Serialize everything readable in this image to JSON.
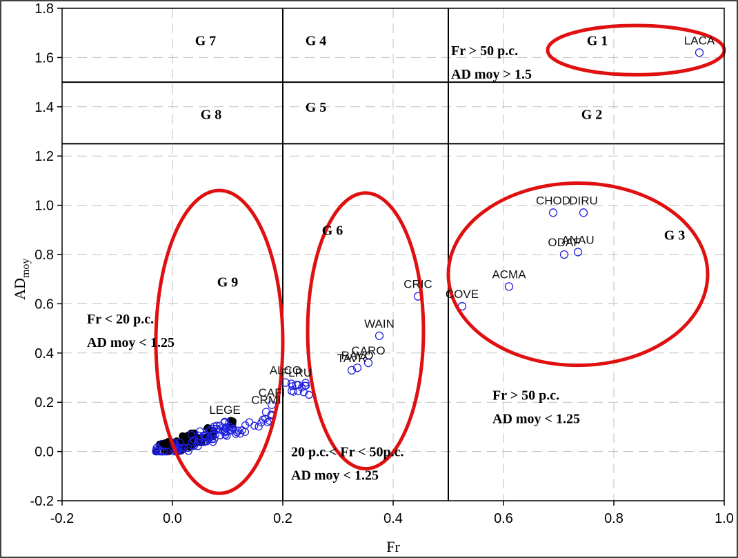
{
  "chart_data": {
    "type": "scatter",
    "xlabel": "Fr",
    "ylabel": "AD",
    "ylabel_sub": "moy",
    "xlim": [
      -0.2,
      1.0
    ],
    "ylim": [
      -0.2,
      1.8
    ],
    "xticks": [
      "-0.2",
      "0.0",
      "0.2",
      "0.4",
      "0.6",
      "0.8",
      "1.0"
    ],
    "yticks": [
      "-0.2",
      "0.0",
      "0.2",
      "0.4",
      "0.6",
      "0.8",
      "1.0",
      "1.2",
      "1.4",
      "1.6",
      "1.8"
    ],
    "grid": true,
    "labeled_points": [
      {
        "label": "LACA",
        "x": 0.955,
        "y": 1.62
      },
      {
        "label": "CHOD",
        "x": 0.69,
        "y": 0.97
      },
      {
        "label": "DIRU",
        "x": 0.745,
        "y": 0.97
      },
      {
        "label": "ODAF",
        "x": 0.71,
        "y": 0.8
      },
      {
        "label": "ANAU",
        "x": 0.735,
        "y": 0.81
      },
      {
        "label": "ACMA",
        "x": 0.61,
        "y": 0.67
      },
      {
        "label": "COVE",
        "x": 0.525,
        "y": 0.59
      },
      {
        "label": "CRIC",
        "x": 0.445,
        "y": 0.63
      },
      {
        "label": "WAIN",
        "x": 0.375,
        "y": 0.47
      },
      {
        "label": "CARO",
        "x": 0.355,
        "y": 0.36
      },
      {
        "label": "TAVR",
        "x": 0.325,
        "y": 0.33
      },
      {
        "label": "RAVO",
        "x": 0.335,
        "y": 0.34
      },
      {
        "label": "ALCO",
        "x": 0.205,
        "y": 0.28
      },
      {
        "label": "FLRU",
        "x": 0.225,
        "y": 0.27
      },
      {
        "label": "CAFI",
        "x": 0.18,
        "y": 0.19
      },
      {
        "label": "CRMI",
        "x": 0.17,
        "y": 0.16
      },
      {
        "label": "LEGE",
        "x": 0.095,
        "y": 0.12
      }
    ],
    "group_labels": [
      {
        "label": "G 1",
        "x": 0.77,
        "y": 1.65
      },
      {
        "label": "G 2",
        "x": 0.76,
        "y": 1.35
      },
      {
        "label": "G 3",
        "x": 0.91,
        "y": 0.86
      },
      {
        "label": "G 4",
        "x": 0.26,
        "y": 1.65
      },
      {
        "label": "G 5",
        "x": 0.26,
        "y": 1.38
      },
      {
        "label": "G 6",
        "x": 0.29,
        "y": 0.88
      },
      {
        "label": "G 7",
        "x": 0.06,
        "y": 1.65
      },
      {
        "label": "G 8",
        "x": 0.07,
        "y": 1.35
      },
      {
        "label": "G 9",
        "x": 0.1,
        "y": 0.67
      }
    ],
    "annotations": [
      {
        "line1": "Fr > 50 p.c.",
        "line2": "AD moy > 1.5",
        "x": 0.505,
        "y": 1.61
      },
      {
        "line1": "Fr < 20 p.c.",
        "line2": "AD moy <  1.25",
        "x": -0.155,
        "y": 0.52
      },
      {
        "line1": "20 p.c.< Fr < 50p.c.",
        "line2": "AD moy < 1.25",
        "x": 0.215,
        "y": -0.02
      },
      {
        "line1": "Fr > 50 p.c.",
        "line2": "AD moy < 1.25",
        "x": 0.58,
        "y": 0.21
      }
    ],
    "dividers": {
      "vertical": [
        0.2,
        0.5
      ],
      "horizontal": [
        1.5,
        1.25
      ]
    },
    "ellipses": [
      {
        "cx": 0.84,
        "cy": 1.63,
        "rx": 0.16,
        "ry": 0.1
      },
      {
        "cx": 0.735,
        "cy": 0.72,
        "rx": 0.235,
        "ry": 0.37
      },
      {
        "cx": 0.35,
        "cy": 0.49,
        "rx": 0.105,
        "ry": 0.56
      },
      {
        "cx": 0.085,
        "cy": 0.445,
        "rx": 0.115,
        "ry": 0.615
      }
    ]
  }
}
